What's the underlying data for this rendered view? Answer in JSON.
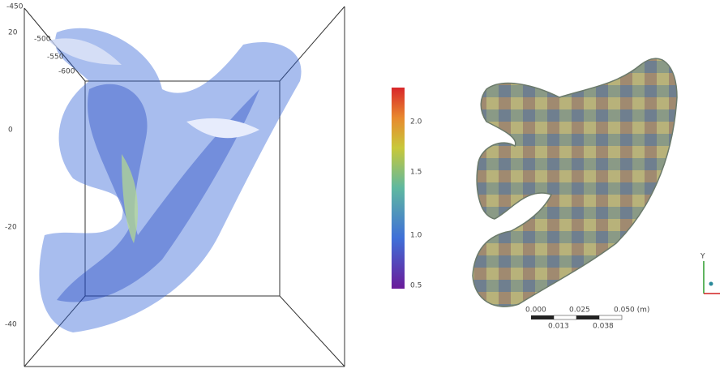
{
  "left_view": {
    "y_axis_labels": [
      "20",
      "0",
      "-20",
      "-40"
    ],
    "depth_labels": [
      "-450",
      "-500",
      "-550",
      "-600"
    ]
  },
  "colorbar": {
    "labels": [
      "2.0",
      "1.5",
      "1.0",
      "0.5"
    ]
  },
  "scale_bar": {
    "top_labels": [
      "0.000",
      "0.025",
      "0.050 (m)"
    ],
    "bottom_labels": [
      "0.013",
      "0.038"
    ]
  },
  "axes_triad": {
    "labels": [
      "Y"
    ]
  }
}
